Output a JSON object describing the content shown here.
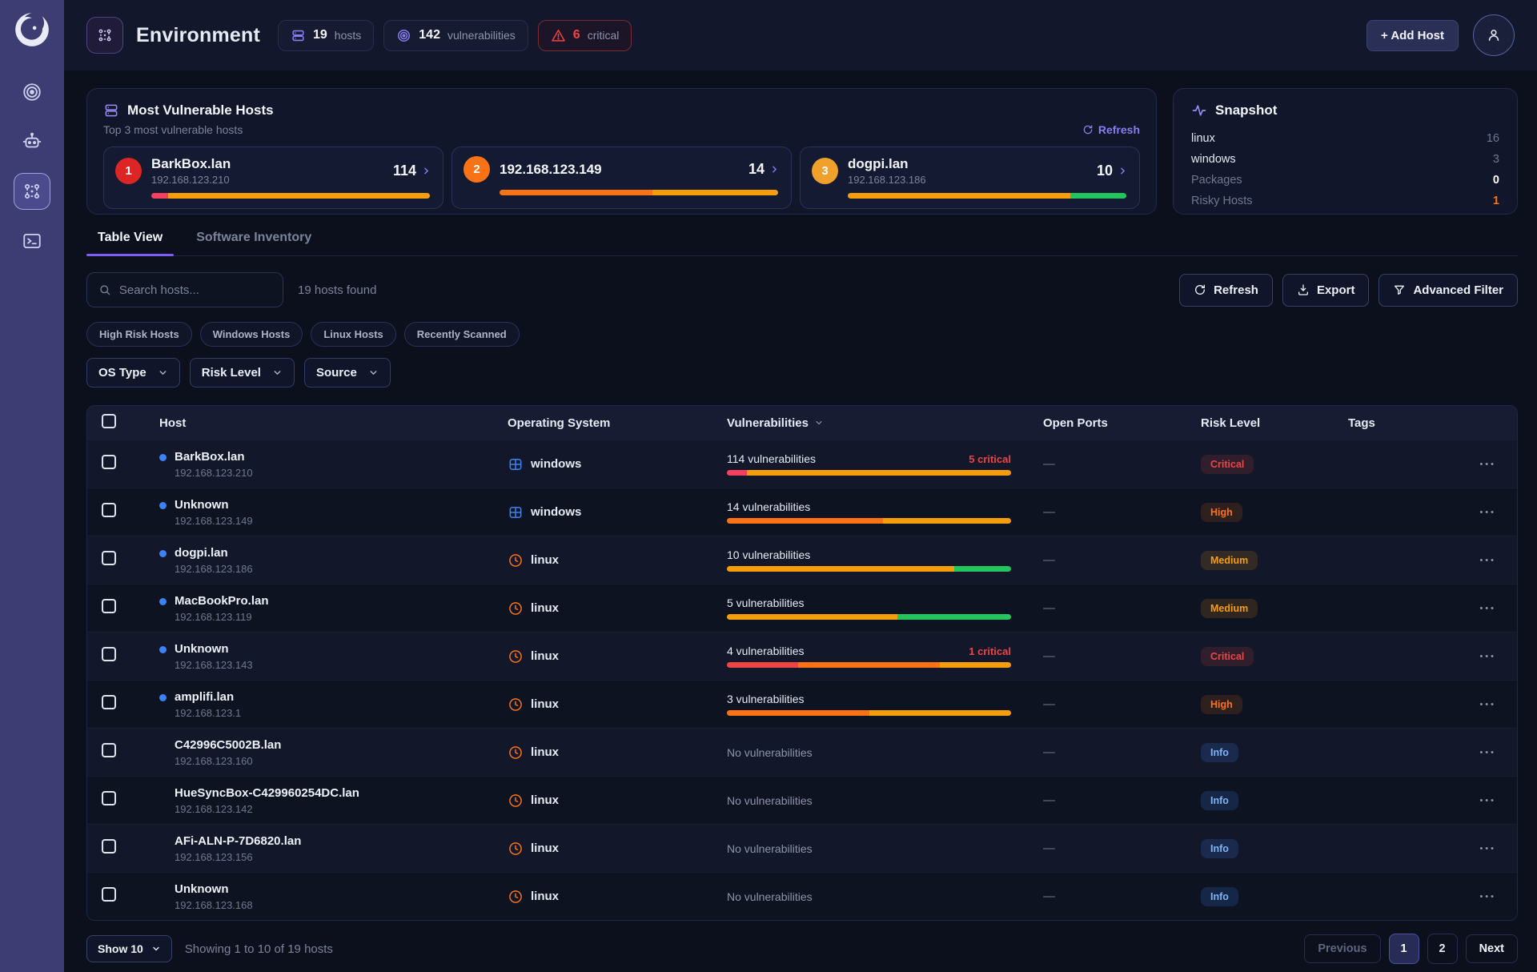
{
  "colors": {
    "red": "#ef4444",
    "rose": "#f43f5e",
    "orange": "#f97316",
    "amber": "#f59e0b",
    "green": "#22c55e",
    "blue": "#3b82f6",
    "purple": "#8b7cf0"
  },
  "sidebar": {
    "icons": [
      "app-logo",
      "radar-icon",
      "robot-icon",
      "environment-icon",
      "terminal-icon"
    ],
    "active_icon": "environment-icon"
  },
  "header": {
    "title": "Environment",
    "stats": [
      {
        "icon": "hosts",
        "value": "19",
        "label": "hosts",
        "critical": false
      },
      {
        "icon": "vulns",
        "value": "142",
        "label": "vulnerabilities",
        "critical": false
      },
      {
        "icon": "critical",
        "value": "6",
        "label": "critical",
        "critical": true
      }
    ],
    "add_host_label": "+ Add Host"
  },
  "most_vulnerable": {
    "title": "Most Vulnerable Hosts",
    "subtitle": "Top 3 most vulnerable hosts",
    "refresh_label": "Refresh",
    "cards": [
      {
        "rank": "1",
        "rank_color": "#dc2626",
        "name": "BarkBox.lan",
        "ip": "192.168.123.210",
        "count": "114",
        "bar": [
          {
            "color": "#f43f5e",
            "pct": 6
          },
          {
            "color": "#f59e0b",
            "pct": 94
          }
        ]
      },
      {
        "rank": "2",
        "rank_color": "#f97316",
        "name": "192.168.123.149",
        "ip": "",
        "count": "14",
        "bar": [
          {
            "color": "#f97316",
            "pct": 55
          },
          {
            "color": "#f59e0b",
            "pct": 45
          }
        ]
      },
      {
        "rank": "3",
        "rank_color": "#f0a12c",
        "name": "dogpi.lan",
        "ip": "192.168.123.186",
        "count": "10",
        "bar": [
          {
            "color": "#f59e0b",
            "pct": 80
          },
          {
            "color": "#22c55e",
            "pct": 20
          }
        ]
      }
    ]
  },
  "snapshot": {
    "title": "Snapshot",
    "rows": [
      {
        "label": "linux",
        "value": "16",
        "label_muted": false,
        "value_style": "muted"
      },
      {
        "label": "windows",
        "value": "3",
        "label_muted": false,
        "value_style": "muted"
      },
      {
        "label": "Packages",
        "value": "0",
        "label_muted": true,
        "value_style": "bright"
      },
      {
        "label": "Risky Hosts",
        "value": "1",
        "label_muted": true,
        "value_style": "risk"
      }
    ]
  },
  "tabs": [
    {
      "label": "Table View",
      "active": true
    },
    {
      "label": "Software Inventory",
      "active": false
    }
  ],
  "toolbar": {
    "search_placeholder": "Search hosts...",
    "results_text": "19 hosts found",
    "buttons": [
      {
        "icon": "refresh",
        "label": "Refresh"
      },
      {
        "icon": "export",
        "label": "Export"
      },
      {
        "icon": "filter",
        "label": "Advanced Filter"
      }
    ]
  },
  "quick_filters": [
    {
      "label": "High Risk Hosts"
    },
    {
      "label": "Windows Hosts"
    },
    {
      "label": "Linux Hosts"
    },
    {
      "label": "Recently Scanned"
    }
  ],
  "filter_selects": [
    {
      "label": "OS Type"
    },
    {
      "label": "Risk Level"
    },
    {
      "label": "Source"
    }
  ],
  "table": {
    "columns": [
      {
        "label": "Host",
        "sortable": false
      },
      {
        "label": "Operating System",
        "sortable": false
      },
      {
        "label": "Vulnerabilities",
        "sortable": true
      },
      {
        "label": "Open Ports",
        "sortable": false
      },
      {
        "label": "Risk Level",
        "sortable": false
      },
      {
        "label": "Tags",
        "sortable": false
      }
    ],
    "rows": [
      {
        "host": "BarkBox.lan",
        "ip": "192.168.123.210",
        "online": true,
        "os": "windows",
        "vuln_text": "114 vulnerabilities",
        "vuln_muted": false,
        "critical_text": "5 critical",
        "bar": [
          {
            "color": "#f43f5e",
            "pct": 7
          },
          {
            "color": "#f59e0b",
            "pct": 93
          }
        ],
        "open_ports": "—",
        "risk": "Critical"
      },
      {
        "host": "Unknown",
        "ip": "192.168.123.149",
        "online": true,
        "os": "windows",
        "vuln_text": "14 vulnerabilities",
        "vuln_muted": false,
        "critical_text": "",
        "bar": [
          {
            "color": "#f97316",
            "pct": 55
          },
          {
            "color": "#f59e0b",
            "pct": 45
          }
        ],
        "open_ports": "—",
        "risk": "High"
      },
      {
        "host": "dogpi.lan",
        "ip": "192.168.123.186",
        "online": true,
        "os": "linux",
        "vuln_text": "10 vulnerabilities",
        "vuln_muted": false,
        "critical_text": "",
        "bar": [
          {
            "color": "#f59e0b",
            "pct": 80
          },
          {
            "color": "#22c55e",
            "pct": 20
          }
        ],
        "open_ports": "—",
        "risk": "Medium"
      },
      {
        "host": "MacBookPro.lan",
        "ip": "192.168.123.119",
        "online": true,
        "os": "linux",
        "vuln_text": "5 vulnerabilities",
        "vuln_muted": false,
        "critical_text": "",
        "bar": [
          {
            "color": "#f59e0b",
            "pct": 60
          },
          {
            "color": "#22c55e",
            "pct": 40
          }
        ],
        "open_ports": "—",
        "risk": "Medium"
      },
      {
        "host": "Unknown",
        "ip": "192.168.123.143",
        "online": true,
        "os": "linux",
        "vuln_text": "4 vulnerabilities",
        "vuln_muted": false,
        "critical_text": "1 critical",
        "bar": [
          {
            "color": "#ef4444",
            "pct": 25
          },
          {
            "color": "#f97316",
            "pct": 50
          },
          {
            "color": "#f59e0b",
            "pct": 25
          }
        ],
        "open_ports": "—",
        "risk": "Critical"
      },
      {
        "host": "amplifi.lan",
        "ip": "192.168.123.1",
        "online": true,
        "os": "linux",
        "vuln_text": "3 vulnerabilities",
        "vuln_muted": false,
        "critical_text": "",
        "bar": [
          {
            "color": "#f97316",
            "pct": 50
          },
          {
            "color": "#f59e0b",
            "pct": 50
          }
        ],
        "open_ports": "—",
        "risk": "High"
      },
      {
        "host": "C42996C5002B.lan",
        "ip": "192.168.123.160",
        "online": false,
        "os": "linux",
        "vuln_text": "No vulnerabilities",
        "vuln_muted": true,
        "critical_text": "",
        "bar": [],
        "open_ports": "—",
        "risk": "Info"
      },
      {
        "host": "HueSyncBox-C429960254DC.lan",
        "ip": "192.168.123.142",
        "online": false,
        "os": "linux",
        "vuln_text": "No vulnerabilities",
        "vuln_muted": true,
        "critical_text": "",
        "bar": [],
        "open_ports": "—",
        "risk": "Info"
      },
      {
        "host": "AFi-ALN-P-7D6820.lan",
        "ip": "192.168.123.156",
        "online": false,
        "os": "linux",
        "vuln_text": "No vulnerabilities",
        "vuln_muted": true,
        "critical_text": "",
        "bar": [],
        "open_ports": "—",
        "risk": "Info"
      },
      {
        "host": "Unknown",
        "ip": "192.168.123.168",
        "online": false,
        "os": "linux",
        "vuln_text": "No vulnerabilities",
        "vuln_muted": true,
        "critical_text": "",
        "bar": [],
        "open_ports": "—",
        "risk": "Info"
      }
    ]
  },
  "footer": {
    "show_label": "Show 10",
    "summary": "Showing 1 to 10 of 19 hosts",
    "previous_label": "Previous",
    "pages": [
      {
        "label": "1",
        "active": true
      },
      {
        "label": "2",
        "active": false
      }
    ],
    "next_label": "Next"
  }
}
